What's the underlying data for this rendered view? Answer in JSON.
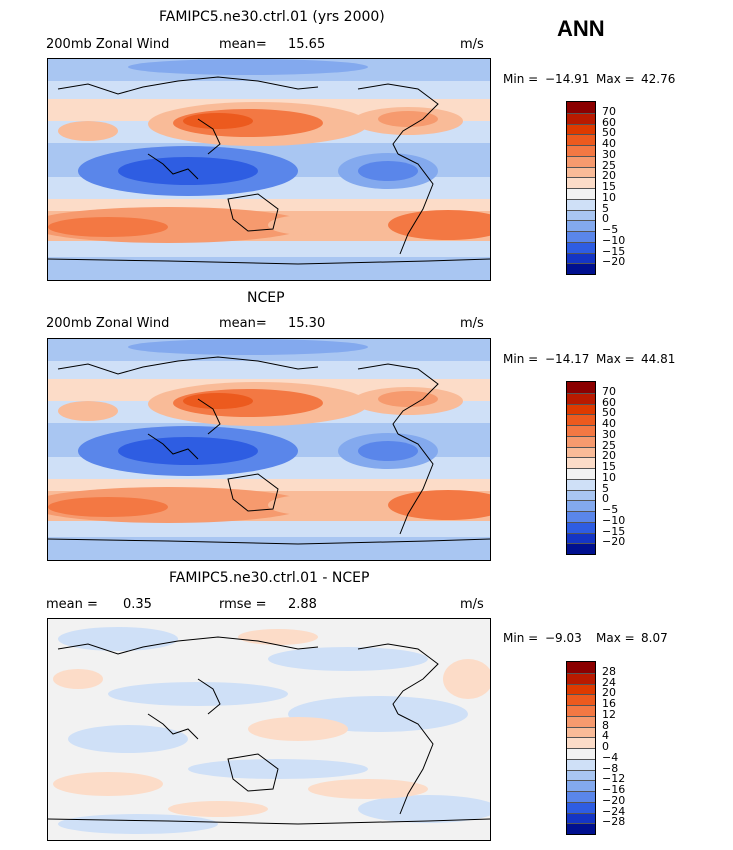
{
  "season_label": "ANN",
  "panels": [
    {
      "title": "FAMIPC5.ne30.ctrl.01 (yrs 2000)",
      "left_label": "200mb Zonal Wind",
      "stat_label": "mean=",
      "stat_value": "15.65",
      "units": "m/s",
      "min_label": "Min =",
      "min_value": "−14.91",
      "max_label": "Max =",
      "max_value": "42.76",
      "colorbar_ticks": [
        "70",
        "60",
        "50",
        "40",
        "30",
        "25",
        "20",
        "15",
        "10",
        "5",
        "0",
        "−5",
        "−10",
        "−15",
        "−20"
      ]
    },
    {
      "title": "NCEP",
      "left_label": "200mb Zonal Wind",
      "stat_label": "mean=",
      "stat_value": "15.30",
      "units": "m/s",
      "min_label": "Min =",
      "min_value": "−14.17",
      "max_label": "Max =",
      "max_value": "44.81",
      "colorbar_ticks": [
        "70",
        "60",
        "50",
        "40",
        "30",
        "25",
        "20",
        "15",
        "10",
        "5",
        "0",
        "−5",
        "−10",
        "−15",
        "−20"
      ]
    },
    {
      "title": "FAMIPC5.ne30.ctrl.01 - NCEP",
      "left_label": "mean =",
      "left_value": "0.35",
      "stat_label": "rmse =",
      "stat_value": "2.88",
      "units": "m/s",
      "min_label": "Min =",
      "min_value": "−9.03",
      "max_label": "Max =",
      "max_value": "8.07",
      "colorbar_ticks": [
        "28",
        "24",
        "20",
        "16",
        "12",
        "8",
        "4",
        "0",
        "−4",
        "−8",
        "−12",
        "−16",
        "−20",
        "−24",
        "−28"
      ]
    }
  ],
  "colors": {
    "palette": [
      "#8b0000",
      "#b81a00",
      "#dd3a00",
      "#ec5a1e",
      "#f37843",
      "#f69a6e",
      "#f9bb98",
      "#fcdcc8",
      "#f2f2f2",
      "#cfe0f7",
      "#a9c6f2",
      "#83a9ee",
      "#5a86ea",
      "#2e5de2",
      "#1435c4",
      "#00108f"
    ]
  }
}
